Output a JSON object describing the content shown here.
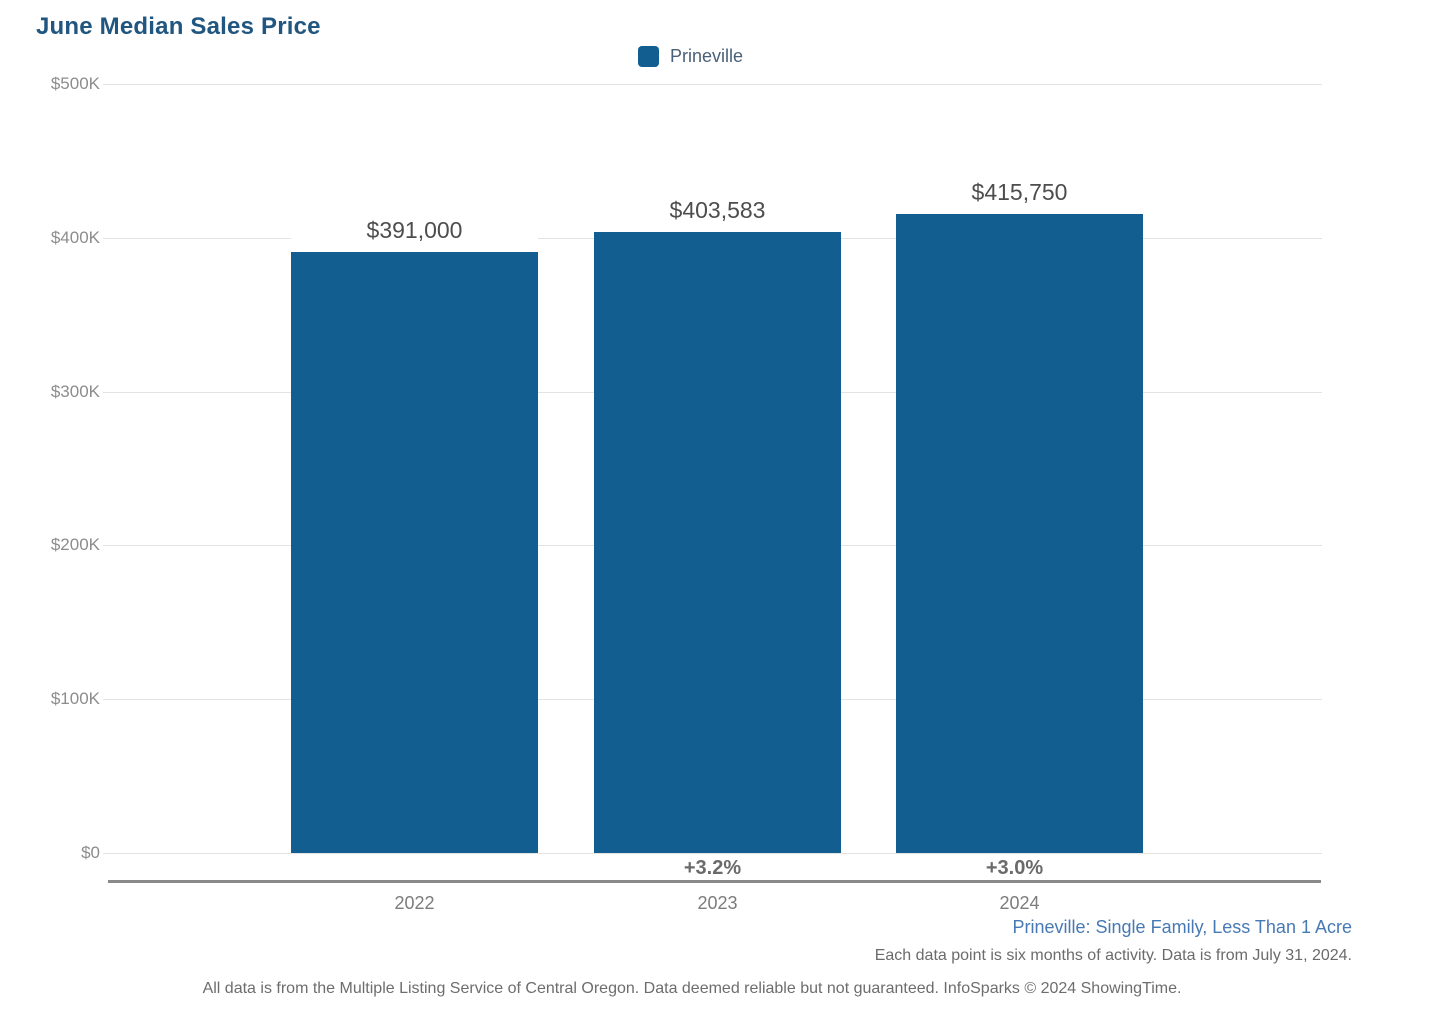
{
  "page": {
    "title": "June Median Sales Price"
  },
  "legend": {
    "label": "Prineville",
    "swatch_color": "#125E90"
  },
  "chart_data": {
    "type": "bar",
    "title": "June Median Sales Price",
    "series_name": "Prineville",
    "categories": [
      "2022",
      "2023",
      "2024"
    ],
    "values": [
      391000,
      403583,
      415750
    ],
    "value_labels": [
      "$391,000",
      "$403,583",
      "$415,750"
    ],
    "pct_change_labels": [
      "",
      "+3.2%",
      "+3.0%"
    ],
    "ylim": [
      0,
      500000
    ],
    "yticks": [
      500000,
      400000,
      300000,
      200000,
      100000,
      0
    ],
    "ytick_labels": [
      "$500K",
      "$400K",
      "$300K",
      "$200K",
      "$100K",
      "$0"
    ],
    "bar_color": "#125E90",
    "grid": true,
    "legend_position": "top-center",
    "xlabel": "",
    "ylabel": ""
  },
  "footer": {
    "series_note": "Prineville: Single Family, Less Than 1 Acre",
    "data_note": "Each data point is six months of activity. Data is from July 31, 2024.",
    "disclaimer": "All data is from the Multiple Listing Service of Central Oregon. Data deemed reliable but not guaranteed. InfoSparks © 2024 ShowingTime."
  }
}
